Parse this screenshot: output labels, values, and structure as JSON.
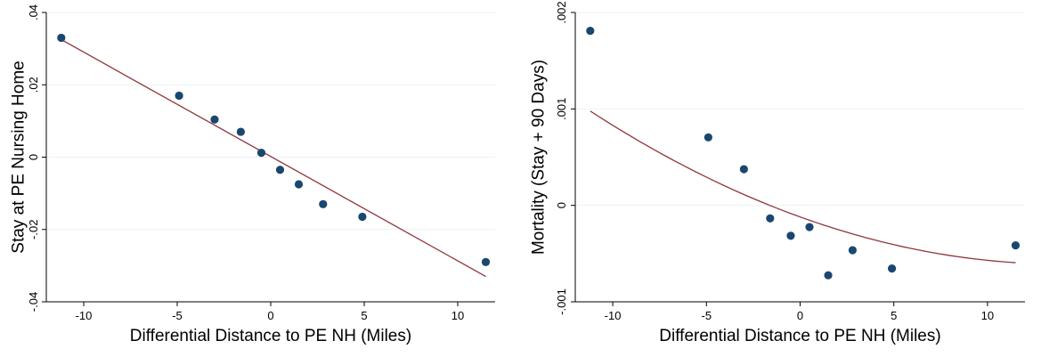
{
  "chart_data": [
    {
      "type": "scatter",
      "title": "",
      "xlabel": "Differential Distance to PE NH (Miles)",
      "ylabel": "Stay at PE Nursing Home",
      "xlim": [
        -12,
        12
      ],
      "ylim": [
        -0.04,
        0.04
      ],
      "x_ticks": [
        -10,
        -5,
        0,
        5,
        10
      ],
      "x_tick_labels": [
        "-10",
        "-5",
        "0",
        "5",
        "10"
      ],
      "y_ticks": [
        -0.04,
        -0.02,
        0,
        0.02,
        0.04
      ],
      "y_tick_labels": [
        "-.04",
        "-.02",
        "0",
        ".02",
        ".04"
      ],
      "grid": true,
      "marker_color": "#1a476f",
      "line_color": "#90353b",
      "series": [
        {
          "x": [
            -11.2,
            -4.9,
            -3.0,
            -1.6,
            -0.5,
            0.5,
            1.5,
            2.8,
            4.9,
            11.5
          ],
          "y": [
            0.033,
            0.017,
            0.0104,
            0.007,
            0.0012,
            -0.0035,
            -0.0075,
            -0.013,
            -0.0165,
            -0.029
          ]
        }
      ],
      "fit_line": {
        "kind": "linear",
        "x": [
          -11.2,
          11.5
        ],
        "y": [
          0.0325,
          -0.033
        ]
      }
    },
    {
      "type": "scatter",
      "title": "",
      "xlabel": "Differential Distance to PE NH (Miles)",
      "ylabel": "Mortality (Stay + 90 Days)",
      "xlim": [
        -12,
        12
      ],
      "ylim": [
        -0.001,
        0.002
      ],
      "x_ticks": [
        -10,
        -5,
        0,
        5,
        10
      ],
      "x_tick_labels": [
        "-10",
        "-5",
        "0",
        "5",
        "10"
      ],
      "y_ticks": [
        -0.001,
        0,
        0.001,
        0.002
      ],
      "y_tick_labels": [
        "-.001",
        "0",
        ".001",
        ".002"
      ],
      "grid": true,
      "marker_color": "#1a476f",
      "line_color": "#90353b",
      "series": [
        {
          "x": [
            -11.2,
            -4.9,
            -3.0,
            -1.6,
            -0.5,
            0.5,
            1.5,
            2.8,
            4.9,
            11.5
          ],
          "y": [
            0.00181,
            0.000705,
            0.000375,
            -0.000135,
            -0.000315,
            -0.000225,
            -0.000725,
            -0.000465,
            -0.000655,
            -0.000415
          ]
        }
      ],
      "fit_line": {
        "kind": "quadratic",
        "x": [
          -11.2,
          11.5
        ],
        "coef": [
          -0.00012,
          -7e-05,
          2.5e-06
        ]
      }
    }
  ]
}
